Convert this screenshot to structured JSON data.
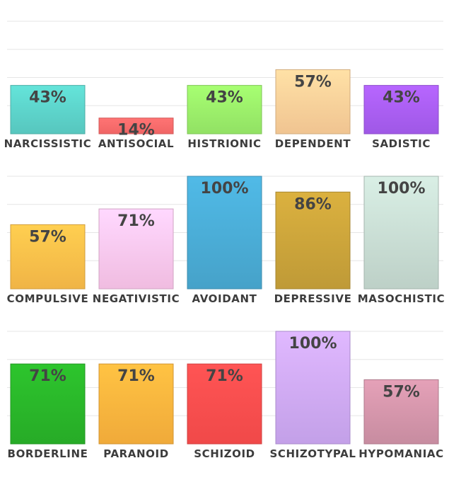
{
  "chart_data": [
    {
      "type": "bar",
      "categories": [
        "NARCISSISTIC",
        "ANTISOCIAL",
        "HISTRIONIC",
        "DEPENDENT",
        "SADISTIC"
      ],
      "values": [
        43,
        14,
        43,
        57,
        43
      ],
      "value_labels": [
        "43%",
        "14%",
        "43%",
        "57%",
        "43%"
      ],
      "colors": [
        "#5dd3ca",
        "#ff6b6b",
        "#9bef6a",
        "#ffd09a",
        "#a95ef5"
      ],
      "ylim": [
        0,
        100
      ],
      "grid": true,
      "title": "",
      "xlabel": "",
      "ylabel": ""
    },
    {
      "type": "bar",
      "categories": [
        "COMPULSIVE",
        "NEGATIVISTIC",
        "AVOIDANT",
        "DEPRESSIVE",
        "MASOCHISTIC"
      ],
      "values": [
        57,
        71,
        100,
        86,
        100
      ],
      "value_labels": [
        "57%",
        "71%",
        "100%",
        "86%",
        "100%"
      ],
      "colors": [
        "#ffc04a",
        "#ffc8ee",
        "#4aacd6",
        "#cba43a",
        "#c9ddd4"
      ],
      "ylim": [
        0,
        100
      ],
      "grid": true,
      "title": "",
      "xlabel": "",
      "ylabel": ""
    },
    {
      "type": "bar",
      "categories": [
        "BORDERLINE",
        "PARANOID",
        "SCHIZOID",
        "SCHIZOTYPAL",
        "HYPOMANIAC"
      ],
      "values": [
        71,
        71,
        71,
        100,
        57
      ],
      "value_labels": [
        "71%",
        "71%",
        "71%",
        "100%",
        "57%"
      ],
      "colors": [
        "#2ab62a",
        "#ffb53e",
        "#ff4e4e",
        "#cfaaf7",
        "#d495aa"
      ],
      "ylim": [
        0,
        100
      ],
      "grid": true,
      "title": "",
      "xlabel": "",
      "ylabel": ""
    }
  ]
}
